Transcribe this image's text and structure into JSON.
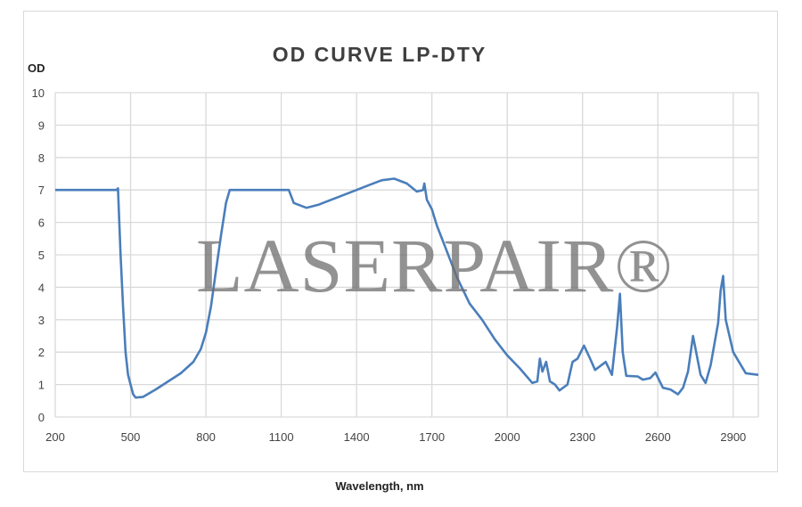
{
  "chart_data": {
    "type": "line",
    "title": "OD CURVE LP-DTY",
    "xlabel": "Wavelength, nm",
    "ylabel": "OD",
    "xlim": [
      200,
      3000
    ],
    "ylim": [
      0,
      10
    ],
    "xticks": [
      200,
      500,
      800,
      1100,
      1400,
      1700,
      2000,
      2300,
      2600,
      2900
    ],
    "yticks": [
      0,
      1,
      2,
      3,
      4,
      5,
      6,
      7,
      8,
      9,
      10
    ],
    "grid": true,
    "line_color": "#4a7ebb",
    "watermark": "LASERPAIR®",
    "series": [
      {
        "x": [
          200,
          445,
          450,
          460,
          470,
          480,
          490,
          500,
          510,
          520,
          550,
          600,
          650,
          700,
          750,
          780,
          800,
          820,
          840,
          860,
          880,
          895,
          1100,
          1130,
          1150,
          1200,
          1250,
          1300,
          1400,
          1450,
          1500,
          1550,
          1600,
          1640,
          1665,
          1670,
          1680,
          1700,
          1720,
          1750,
          1800,
          1850,
          1900,
          1950,
          2000,
          2050,
          2100,
          2120,
          2130,
          2140,
          2155,
          2170,
          2190,
          2208,
          2240,
          2260,
          2280,
          2306,
          2330,
          2350,
          2392,
          2417,
          2438,
          2449,
          2460,
          2474,
          2520,
          2540,
          2570,
          2590,
          2620,
          2650,
          2680,
          2700,
          2720,
          2740,
          2770,
          2790,
          2810,
          2840,
          2850,
          2860,
          2870,
          2900,
          2950,
          3000
        ],
        "y": [
          7,
          7,
          7.05,
          5,
          3.4,
          2,
          1.3,
          1.0,
          0.7,
          0.6,
          0.62,
          0.85,
          1.1,
          1.35,
          1.7,
          2.1,
          2.6,
          3.4,
          4.5,
          5.6,
          6.6,
          7,
          7,
          7,
          6.6,
          6.45,
          6.55,
          6.7,
          7.0,
          7.15,
          7.3,
          7.35,
          7.2,
          6.95,
          7.0,
          7.2,
          6.7,
          6.4,
          5.9,
          5.3,
          4.3,
          3.5,
          3.0,
          2.4,
          1.9,
          1.5,
          1.05,
          1.1,
          1.8,
          1.4,
          1.7,
          1.1,
          1.0,
          0.82,
          1.0,
          1.7,
          1.8,
          2.2,
          1.8,
          1.45,
          1.7,
          1.3,
          2.8,
          3.8,
          2.0,
          1.27,
          1.25,
          1.15,
          1.2,
          1.37,
          0.9,
          0.85,
          0.7,
          0.9,
          1.4,
          2.5,
          1.3,
          1.05,
          1.6,
          2.9,
          3.9,
          4.35,
          3.0,
          2.0,
          1.35,
          1.3
        ]
      }
    ]
  }
}
